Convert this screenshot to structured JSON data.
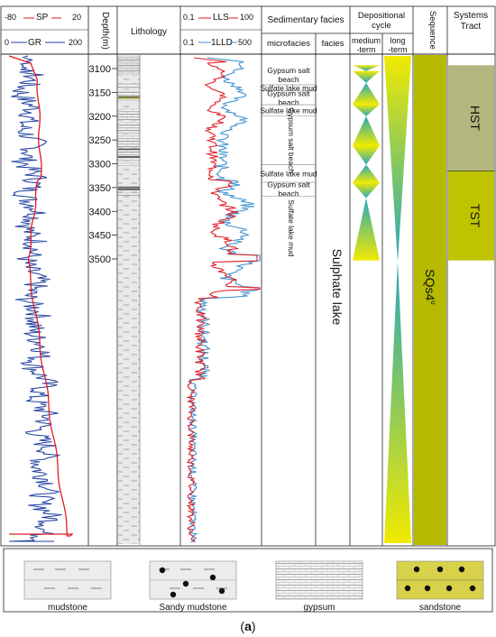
{
  "header": {
    "sp": {
      "min": "-80",
      "label": "SP",
      "max": "20",
      "color": "#e01b24"
    },
    "gr": {
      "min": "0",
      "label": "GR",
      "max": "200",
      "color": "#1f3f9f"
    },
    "depth": "Depth(m)",
    "lithology": "Lithology",
    "lls": {
      "min": "0.1",
      "label": "LLS",
      "max": "100",
      "color": "#e01b24"
    },
    "lld": {
      "min": "0.1",
      "label": "1LLD",
      "max": "500",
      "color": "#3a8fd0"
    },
    "sedimentary_facies": "Sedimentary facies",
    "microfacies": "microfacies",
    "facies": "facies",
    "depositional_cycle": "Depositional cycle",
    "medium_term": "medium -term",
    "long_term": "long -term",
    "sequence": "Sequence",
    "systems_tract": "Systems Tract"
  },
  "depth_ticks": [
    "3100",
    "3150",
    "3200",
    "3250",
    "3300",
    "3350",
    "3400",
    "3450",
    "3500"
  ],
  "microfacies": [
    {
      "label": "Gypsum salt beach",
      "top": 3093,
      "bottom": 3134,
      "vertical": false
    },
    {
      "label": "Sulfate lake mud",
      "top": 3134,
      "bottom": 3147,
      "vertical": false
    },
    {
      "label": "Gypsum salt beach",
      "top": 3147,
      "bottom": 3176,
      "vertical": false
    },
    {
      "label": "Sulfate lake mud",
      "top": 3176,
      "bottom": 3200,
      "vertical": false
    },
    {
      "label": "Gypsum salt beach",
      "top": 3200,
      "bottom": 3302,
      "vertical": true
    },
    {
      "label": "Sulfate lake mud",
      "top": 3302,
      "bottom": 3339,
      "vertical": false
    },
    {
      "label": "Gypsum salt beach",
      "top": 3339,
      "bottom": 3368,
      "vertical": false
    },
    {
      "label": "Sulfate lake mud",
      "top": 3368,
      "bottom": 3503,
      "vertical": true
    }
  ],
  "facies_label": "Sulphate lake",
  "sequence_label": "SQs4",
  "sequence_superscript": "u",
  "systems_tracts": [
    {
      "label": "HST",
      "top": 3093,
      "bottom": 3315,
      "color": "#b3b67e"
    },
    {
      "label": "TST",
      "top": 3315,
      "bottom": 3503,
      "color": "#bfc400"
    }
  ],
  "colors": {
    "sequence_fill": "#b5b900",
    "yellow": "#f2ea00",
    "teal": "#26a8b8"
  },
  "legend": [
    {
      "label": "mudstone",
      "pattern": "mudstone"
    },
    {
      "label": "Sandy mudstone",
      "pattern": "sandy-mudstone"
    },
    {
      "label": "gypsum",
      "pattern": "gypsum"
    },
    {
      "label": "sandstone",
      "pattern": "sandstone"
    }
  ],
  "caption": {
    "open": "(",
    "letter": "a",
    "close": ")"
  }
}
